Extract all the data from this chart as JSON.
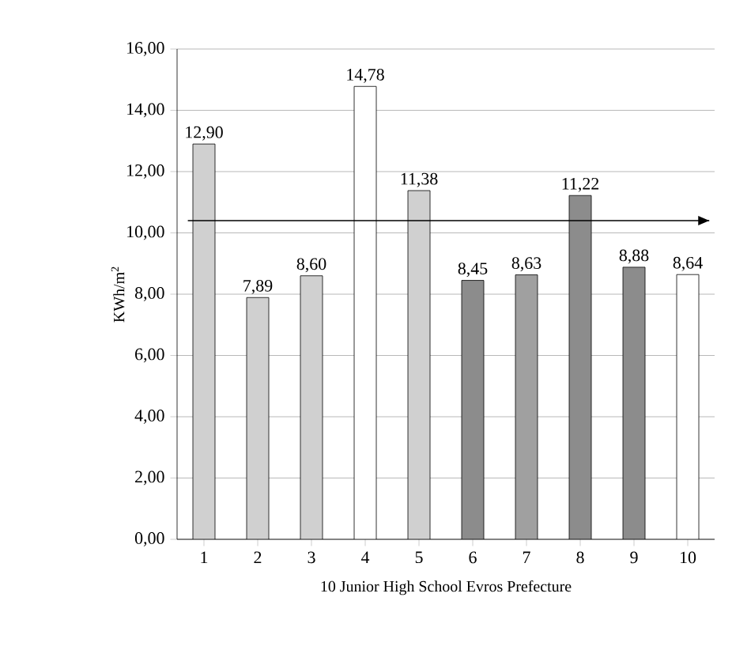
{
  "chart_data": {
    "type": "bar",
    "categories": [
      "1",
      "2",
      "3",
      "4",
      "5",
      "6",
      "7",
      "8",
      "9",
      "10"
    ],
    "values": [
      12.9,
      7.89,
      8.6,
      14.78,
      11.38,
      8.45,
      8.63,
      11.22,
      8.88,
      8.64
    ],
    "colors": [
      "#d0d0d0",
      "#d0d0d0",
      "#d0d0d0",
      "#ffffff",
      "#d0d0d0",
      "#8c8c8c",
      "#a0a0a0",
      "#8c8c8c",
      "#8c8c8c",
      "#ffffff"
    ],
    "xlabel": "10 Junior High School Evros Prefecture",
    "ylabel": "KWh/m$^{2}$",
    "ylim": [
      0,
      16
    ],
    "yticks": [
      {
        "value": 0,
        "label": "0,00"
      },
      {
        "value": 2,
        "label": "2,00"
      },
      {
        "value": 4,
        "label": "4,00"
      },
      {
        "value": 6,
        "label": "6,00"
      },
      {
        "value": 8,
        "label": "8,00"
      },
      {
        "value": 10,
        "label": "10,00"
      },
      {
        "value": 12,
        "label": "12,00"
      },
      {
        "value": 14,
        "label": "14,00"
      },
      {
        "value": 16,
        "label": "16,00"
      }
    ],
    "value_labels": [
      "12,90",
      "7,89",
      "8,60",
      "14,78",
      "11,38",
      "8,45",
      "8,63",
      "11,22",
      "8,88",
      "8,64"
    ],
    "ref_lines": [
      {
        "axis": "y",
        "value": 10.4
      }
    ],
    "grid": "y"
  }
}
